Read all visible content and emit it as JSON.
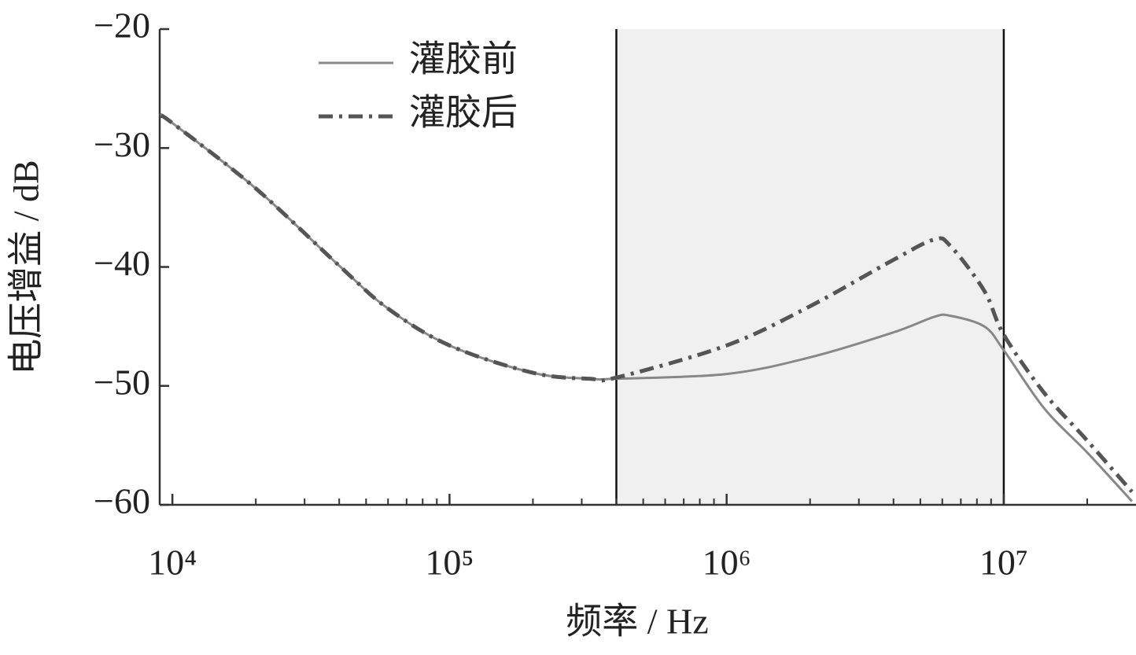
{
  "chart_data": {
    "type": "line",
    "x_label": "频率 / Hz",
    "y_label": "电压增益 / dB",
    "x": [
      9070,
      10000,
      20000,
      40000,
      60000,
      100000,
      200000,
      320000,
      400000,
      1000000,
      2000000,
      4000000,
      5600000,
      6400000,
      8500000,
      10000000,
      14000000,
      20000000,
      29000000
    ],
    "series": [
      {
        "name": "灌胶前",
        "color": "#888888",
        "dash": "solid",
        "values": [
          -27.3,
          -27.9,
          -33.4,
          -39.9,
          -43.5,
          -46.6,
          -48.9,
          -49.4,
          -49.4,
          -49.0,
          -47.6,
          -45.5,
          -44.2,
          -44.1,
          -45.0,
          -47.0,
          -51.9,
          -55.6,
          -59.7
        ]
      },
      {
        "name": "灌胶后",
        "color": "#555555",
        "dash": "dashdot",
        "values": [
          -27.3,
          -27.9,
          -33.4,
          -39.9,
          -43.5,
          -46.6,
          -48.9,
          -49.4,
          -49.3,
          -46.6,
          -43.3,
          -39.4,
          -37.7,
          -38.2,
          -42.0,
          -45.7,
          -50.6,
          -54.6,
          -58.9
        ]
      }
    ],
    "xscale": "log",
    "xlim": [
      9000,
      30000000
    ],
    "xticks": [
      {
        "value": 10000,
        "label": "10⁴"
      },
      {
        "value": 100000,
        "label": "10⁵"
      },
      {
        "value": 1000000,
        "label": "10⁶"
      },
      {
        "value": 10000000,
        "label": "10⁷"
      }
    ],
    "xminorticks": [
      20000,
      30000,
      40000,
      50000,
      60000,
      70000,
      80000,
      90000,
      200000,
      300000,
      400000,
      500000,
      600000,
      700000,
      800000,
      900000,
      2000000,
      3000000,
      4000000,
      5000000,
      6000000,
      7000000,
      8000000,
      9000000,
      20000000
    ],
    "ylim": [
      -60,
      -20
    ],
    "yticks": [
      {
        "value": -60,
        "label": "−60"
      },
      {
        "value": -50,
        "label": "−50"
      },
      {
        "value": -40,
        "label": "−40"
      },
      {
        "value": -30,
        "label": "−30"
      },
      {
        "value": -20,
        "label": "−20"
      }
    ],
    "shaded_region": [
      400000,
      10000000
    ],
    "shade_color": "#f0f0f0",
    "legend": "top-center",
    "grid": false
  }
}
